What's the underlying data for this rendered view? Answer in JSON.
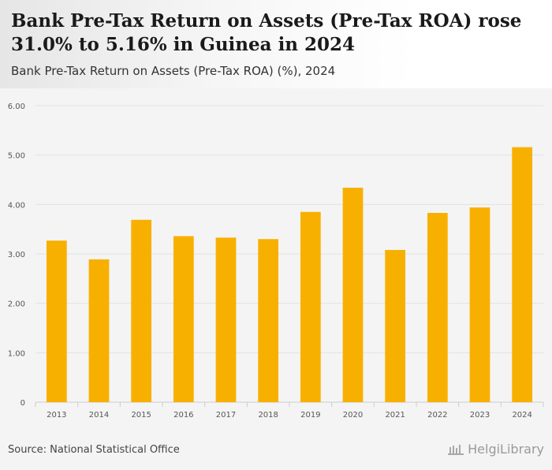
{
  "header": {
    "title": "Bank Pre-Tax Return on Assets (Pre-Tax ROA) rose 31.0% to 5.16% in Guinea in 2024",
    "subtitle": "Bank Pre-Tax Return on Assets (Pre-Tax ROA) (%), 2024"
  },
  "footer": {
    "source": "Source: National Statistical Office",
    "logo_text": "HelgiLibrary"
  },
  "colors": {
    "bar": "#f8b000",
    "grid": "#e2e2e2",
    "tick_text": "#555555"
  },
  "chart_data": {
    "type": "bar",
    "title": "Bank Pre-Tax Return on Assets (Pre-Tax ROA) rose 31.0% to 5.16% in Guinea in 2024",
    "xlabel": "",
    "ylabel": "",
    "categories": [
      "2013",
      "2014",
      "2015",
      "2016",
      "2017",
      "2018",
      "2019",
      "2020",
      "2021",
      "2022",
      "2023",
      "2024"
    ],
    "values": [
      3.27,
      2.89,
      3.69,
      3.36,
      3.33,
      3.3,
      3.85,
      4.34,
      3.08,
      3.83,
      3.94,
      5.16
    ],
    "ylim": [
      0,
      6
    ],
    "yticks": [
      0,
      1,
      2,
      3,
      4,
      5,
      6
    ],
    "ytick_labels": [
      "0",
      "1.00",
      "2.00",
      "3.00",
      "4.00",
      "5.00",
      "6.00"
    ],
    "grid": true,
    "legend": "none"
  }
}
